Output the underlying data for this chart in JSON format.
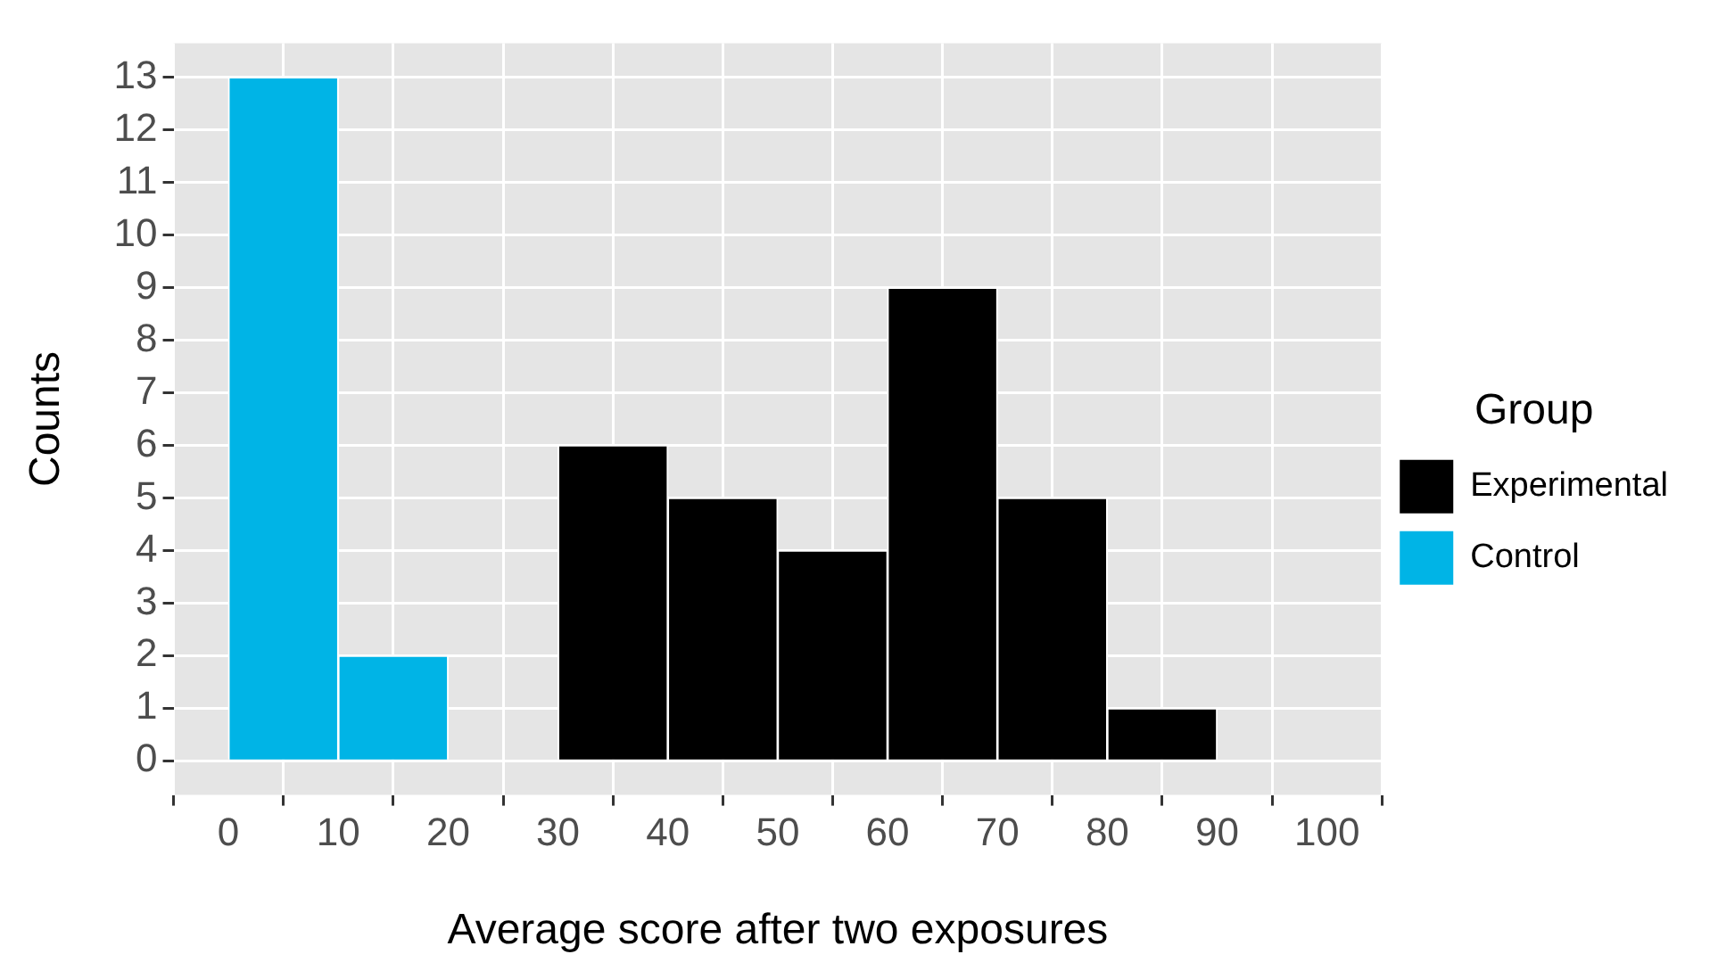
{
  "chart_data": {
    "type": "histogram",
    "xlabel": "Average score after two exposures",
    "ylabel": "Counts",
    "legend_title": "Group",
    "legend": "right",
    "grid": true,
    "bins": [
      0,
      10,
      20,
      30,
      40,
      50,
      60,
      70,
      80,
      90,
      100
    ],
    "series": [
      {
        "name": "Experimental",
        "color": "#000000",
        "values": [
          0,
          0,
          0,
          6,
          5,
          4,
          9,
          5,
          1,
          0
        ]
      },
      {
        "name": "Control",
        "color": "#00b4e6",
        "values": [
          13,
          2,
          0,
          0,
          0,
          0,
          0,
          0,
          0,
          0
        ]
      }
    ],
    "xlim": [
      -5,
      105
    ],
    "xticks": [
      0,
      10,
      20,
      30,
      40,
      50,
      60,
      70,
      80,
      90,
      100
    ],
    "ylim": [
      -0.65,
      13.65
    ],
    "yticks": [
      0,
      1,
      2,
      3,
      4,
      5,
      6,
      7,
      8,
      9,
      10,
      11,
      12,
      13
    ]
  }
}
